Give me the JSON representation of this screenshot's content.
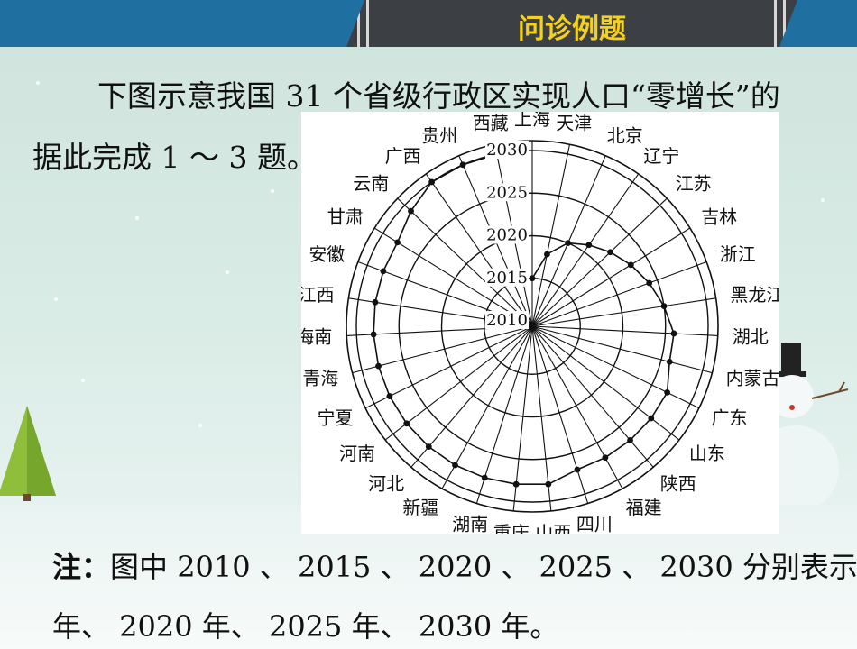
{
  "header": {
    "title": "问诊例题"
  },
  "intro": {
    "line1": "下图示意我国 31 个省级行政区实现人口“零增长”的",
    "line2": "据此完成 1 ～ 3 题。"
  },
  "figure": {
    "ring_labels": [
      "2010",
      "2015",
      "2020",
      "2025",
      "2030"
    ],
    "provinces": [
      "上海",
      "天津",
      "北京",
      "辽宁",
      "江苏",
      "吉林",
      "浙江",
      "黑龙江",
      "湖北",
      "内蒙古",
      "广东",
      "山东",
      "陕西",
      "福建",
      "四川",
      "山西",
      "重庆",
      "湖南",
      "新疆",
      "河北",
      "河南",
      "宁夏",
      "青海",
      "海南",
      "江西",
      "安徽",
      "甘肃",
      "云南",
      "广西",
      "贵州",
      "西藏"
    ],
    "zero_growth_years": [
      2015,
      2018,
      2020,
      2021,
      2022,
      2023,
      2024,
      2025,
      2026,
      2026,
      2027,
      2027,
      2027,
      2027,
      2027,
      2028,
      2028,
      2028,
      2028,
      2028,
      2028,
      2028,
      2028,
      2028,
      2028,
      2028,
      2028,
      2029,
      2030,
      2030,
      2030
    ]
  },
  "note": {
    "label": "注：",
    "line1": "图中 2010 、 2015 、 2020 、 2025 、 2030 分别表示",
    "line2": "年、 2020 年、 2025 年、 2030 年。"
  }
}
